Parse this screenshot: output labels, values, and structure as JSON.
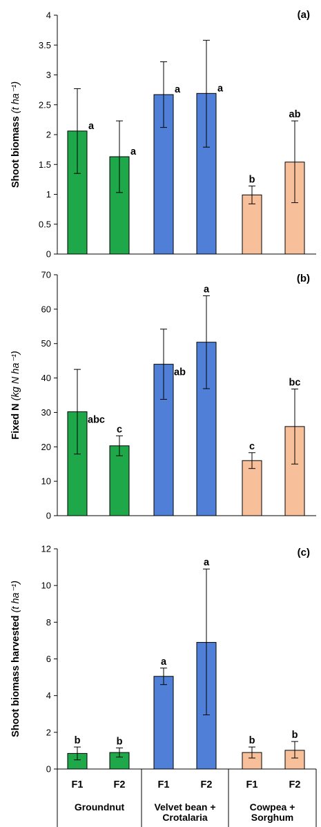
{
  "chart_data": [
    {
      "type": "bar",
      "panel_label": "(a)",
      "ylabel_main": "Shoot biomass ",
      "ylabel_unit": "(t ha⁻¹)",
      "ylim": [
        0,
        4
      ],
      "yticks": [
        "0",
        "0.5",
        "1",
        "1.5",
        "2",
        "2.5",
        "3",
        "3.5",
        "4"
      ],
      "grid": false,
      "categories": [
        "Groundnut F1",
        "Groundnut F2",
        "Velvet bean + Crotalaria F1",
        "Velvet bean + Crotalaria F2",
        "Cowpea + Sorghum F1",
        "Cowpea + Sorghum F2"
      ],
      "values": [
        2.06,
        1.63,
        2.67,
        2.69,
        0.99,
        1.54
      ],
      "error_low": [
        1.35,
        1.03,
        2.12,
        1.79,
        0.84,
        0.86
      ],
      "error_high": [
        2.77,
        2.23,
        3.22,
        3.58,
        1.14,
        2.23
      ],
      "letters": [
        "a",
        "a",
        "a",
        "a",
        "b",
        "ab"
      ]
    },
    {
      "type": "bar",
      "panel_label": "(b)",
      "ylabel_main": "Fixed N ",
      "ylabel_unit": "(kg N ha⁻¹)",
      "ylim": [
        0,
        70
      ],
      "yticks": [
        "0",
        "10",
        "20",
        "30",
        "40",
        "50",
        "60",
        "70"
      ],
      "grid": false,
      "categories": [
        "Groundnut F1",
        "Groundnut F2",
        "Velvet bean + Crotalaria F1",
        "Velvet bean + Crotalaria F2",
        "Cowpea + Sorghum F1",
        "Cowpea + Sorghum F2"
      ],
      "values": [
        30.2,
        20.3,
        44.0,
        50.4,
        16.0,
        25.9
      ],
      "error_low": [
        17.9,
        17.4,
        33.8,
        36.9,
        13.7,
        15.0
      ],
      "error_high": [
        42.5,
        23.2,
        54.2,
        63.9,
        18.3,
        36.8
      ],
      "letters": [
        "abc",
        "c",
        "ab",
        "a",
        "c",
        "bc"
      ]
    },
    {
      "type": "bar",
      "panel_label": "(c)",
      "ylabel_main": "Shoot biomass harvested ",
      "ylabel_unit": "(t ha⁻¹)",
      "ylim": [
        0,
        12
      ],
      "yticks": [
        "0",
        "2",
        "4",
        "6",
        "8",
        "10",
        "12"
      ],
      "grid": false,
      "categories": [
        "Groundnut F1",
        "Groundnut F2",
        "Velvet bean + Crotalaria F1",
        "Velvet bean + Crotalaria F2",
        "Cowpea + Sorghum F1",
        "Cowpea + Sorghum F2"
      ],
      "values": [
        0.85,
        0.9,
        5.05,
        6.9,
        0.9,
        1.02
      ],
      "error_low": [
        0.5,
        0.65,
        4.6,
        2.95,
        0.6,
        0.6
      ],
      "error_high": [
        1.2,
        1.15,
        5.5,
        10.9,
        1.2,
        1.5
      ],
      "letters": [
        "b",
        "b",
        "a",
        "a",
        "b",
        "b"
      ]
    }
  ],
  "x_axis": {
    "groups": [
      {
        "name_lines": [
          "Groundnut"
        ],
        "treatments": [
          "F1",
          "F2"
        ],
        "color": "#1fa84a"
      },
      {
        "name_lines": [
          "Velvet bean +",
          "Crotalaria"
        ],
        "treatments": [
          "F1",
          "F2"
        ],
        "color": "#4f7fd6"
      },
      {
        "name_lines": [
          "Cowpea +",
          "Sorghum"
        ],
        "treatments": [
          "F1",
          "F2"
        ],
        "color": "#f7c09a"
      }
    ]
  }
}
